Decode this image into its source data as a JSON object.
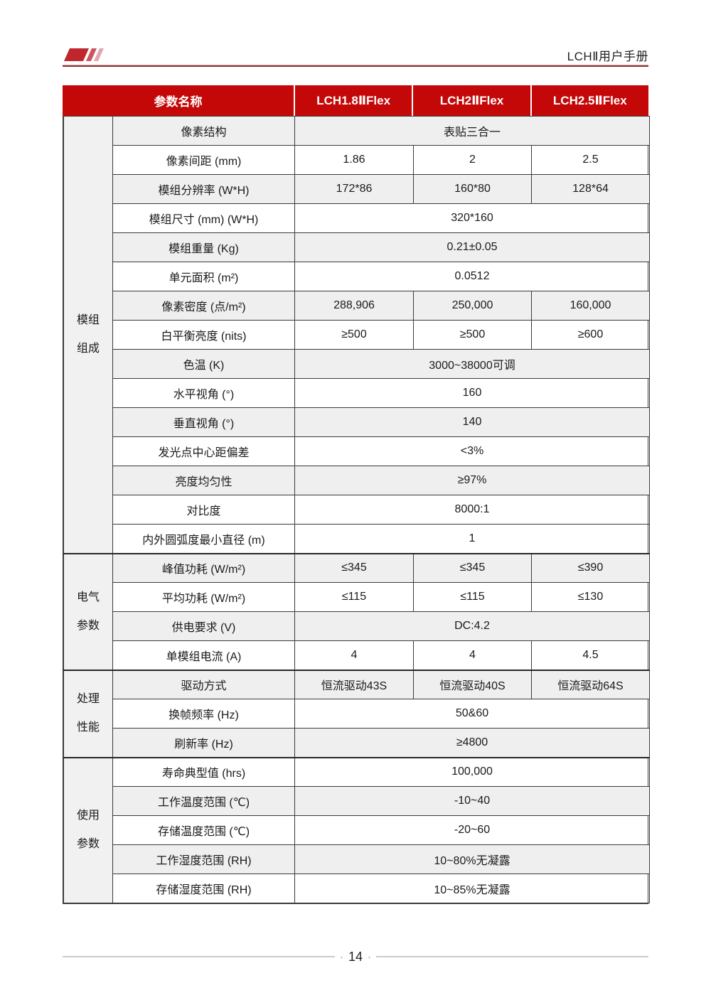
{
  "page": {
    "header_title": "LCHⅡ用户手册",
    "footer_page_number": "14"
  },
  "colors": {
    "table_header_red": "#C40808",
    "header_rule_maroon": "#8E3434",
    "logo_red": "#C0272D",
    "row_shade_gray": "#EFEFEF",
    "group_column_gray": "#F1F1F1",
    "table_border": "#3A3A3A",
    "footer_line_gray": "#CBCBCB"
  },
  "table": {
    "header": {
      "param_col": "参数名称",
      "products": [
        "LCH1.8ⅡFlex",
        "LCH2ⅡFlex",
        "LCH2.5ⅡFlex"
      ]
    },
    "sections": [
      {
        "group": "模组组成",
        "group_lines": [
          "模组",
          "组成"
        ],
        "rows": [
          {
            "label": "像素结构",
            "values": [
              "表贴三合一"
            ],
            "shade": true
          },
          {
            "label": "像素间距 (mm)",
            "values": [
              "1.86",
              "2",
              "2.5"
            ],
            "shade": false
          },
          {
            "label": "模组分辨率 (W*H)",
            "values": [
              "172*86",
              "160*80",
              "128*64"
            ],
            "shade": true
          },
          {
            "label": "模组尺寸 (mm) (W*H)",
            "values": [
              "320*160"
            ],
            "shade": false
          },
          {
            "label": "模组重量 (Kg)",
            "values": [
              "0.21±0.05"
            ],
            "shade": true
          },
          {
            "label": "单元面积 (m²)",
            "values": [
              "0.0512"
            ],
            "shade": false
          },
          {
            "label": "像素密度 (点/m²)",
            "values": [
              "288,906",
              "250,000",
              "160,000"
            ],
            "shade": true
          },
          {
            "label": "白平衡亮度 (nits)",
            "values": [
              "≥500",
              "≥500",
              "≥600"
            ],
            "shade": false
          },
          {
            "label": "色温 (K)",
            "values": [
              "3000~38000可调"
            ],
            "shade": true
          },
          {
            "label": "水平视角 (°)",
            "values": [
              "160"
            ],
            "shade": false
          },
          {
            "label": "垂直视角 (°)",
            "values": [
              "140"
            ],
            "shade": true
          },
          {
            "label": "发光点中心距偏差",
            "values": [
              "<3%"
            ],
            "shade": false
          },
          {
            "label": "亮度均匀性",
            "values": [
              "≥97%"
            ],
            "shade": true
          },
          {
            "label": "对比度",
            "values": [
              "8000:1"
            ],
            "shade": false
          },
          {
            "label": "内外圆弧度最小直径 (m)",
            "values": [
              "1"
            ],
            "shade": false
          }
        ]
      },
      {
        "group": "电气参数",
        "group_lines": [
          "电气",
          "参数"
        ],
        "rows": [
          {
            "label": "峰值功耗 (W/m²)",
            "values": [
              "≤345",
              "≤345",
              "≤390"
            ],
            "shade": true
          },
          {
            "label": "平均功耗 (W/m²)",
            "values": [
              "≤115",
              "≤115",
              "≤130"
            ],
            "shade": false
          },
          {
            "label": "供电要求 (V)",
            "values": [
              "DC:4.2"
            ],
            "shade": true
          },
          {
            "label": "单模组电流 (A)",
            "values": [
              "4",
              "4",
              "4.5"
            ],
            "shade": false
          }
        ]
      },
      {
        "group": "处理性能",
        "group_lines": [
          "处理",
          "性能"
        ],
        "rows": [
          {
            "label": "驱动方式",
            "values": [
              "恒流驱动43S",
              "恒流驱动40S",
              "恒流驱动64S"
            ],
            "shade": true
          },
          {
            "label": "换帧频率 (Hz)",
            "values": [
              "50&60"
            ],
            "shade": false
          },
          {
            "label": "刷新率 (Hz)",
            "values": [
              "≥4800"
            ],
            "shade": true
          }
        ]
      },
      {
        "group": "使用参数",
        "group_lines": [
          "使用",
          "参数"
        ],
        "rows": [
          {
            "label": "寿命典型值 (hrs)",
            "values": [
              "100,000"
            ],
            "shade": false
          },
          {
            "label": "工作温度范围 (℃)",
            "values": [
              "-10~40"
            ],
            "shade": true
          },
          {
            "label": "存储温度范围 (℃)",
            "values": [
              "-20~60"
            ],
            "shade": false
          },
          {
            "label": "工作湿度范围 (RH)",
            "values": [
              "10~80%无凝露"
            ],
            "shade": true
          },
          {
            "label": "存储湿度范围 (RH)",
            "values": [
              "10~85%无凝露"
            ],
            "shade": false
          }
        ]
      }
    ]
  }
}
